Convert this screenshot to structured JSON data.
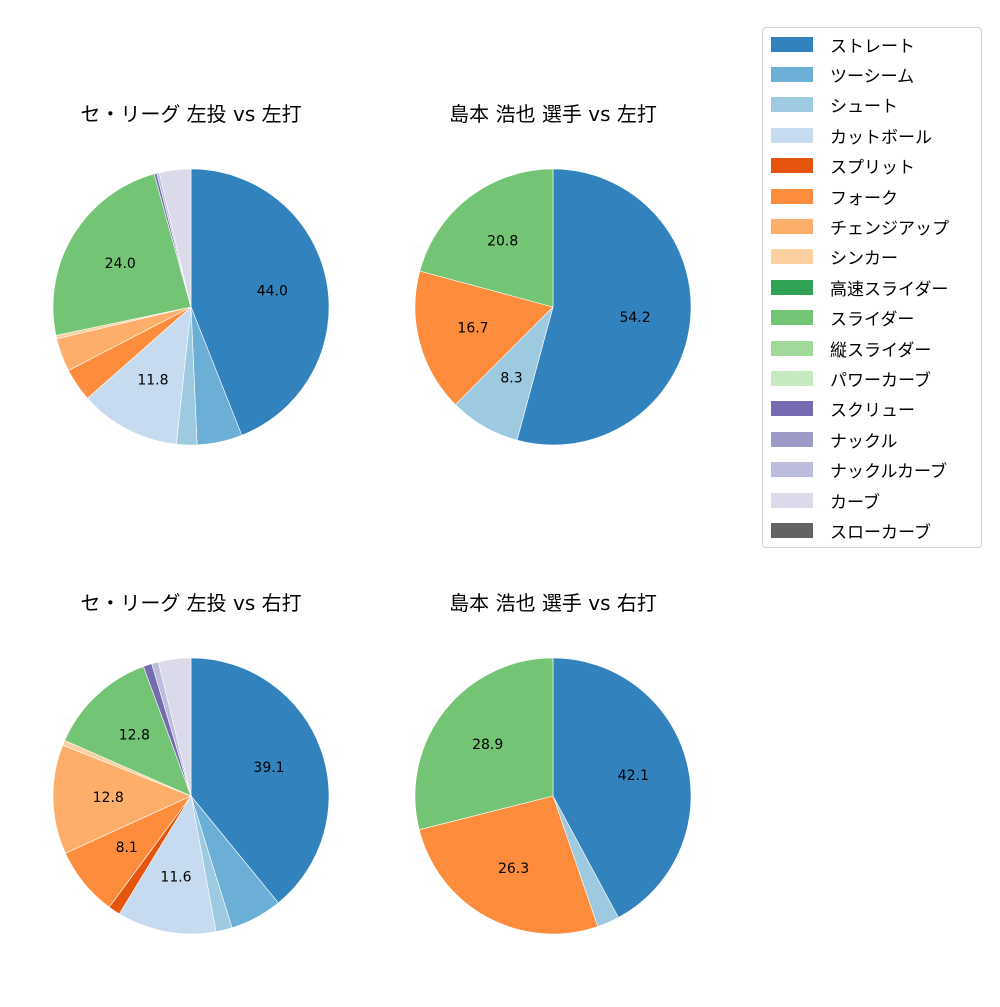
{
  "legend": {
    "items": [
      {
        "label": "ストレート",
        "color": "#3182bd"
      },
      {
        "label": "ツーシーム",
        "color": "#6baed6"
      },
      {
        "label": "シュート",
        "color": "#9ecae1"
      },
      {
        "label": "カットボール",
        "color": "#c6dbef"
      },
      {
        "label": "スプリット",
        "color": "#e6550d"
      },
      {
        "label": "フォーク",
        "color": "#fd8d3c"
      },
      {
        "label": "チェンジアップ",
        "color": "#fdae6b"
      },
      {
        "label": "シンカー",
        "color": "#fdd0a2"
      },
      {
        "label": "高速スライダー",
        "color": "#31a354"
      },
      {
        "label": "スライダー",
        "color": "#74c476"
      },
      {
        "label": "縦スライダー",
        "color": "#a1d99b"
      },
      {
        "label": "パワーカーブ",
        "color": "#c7e9c0"
      },
      {
        "label": "スクリュー",
        "color": "#756bb1"
      },
      {
        "label": "ナックル",
        "color": "#9e9ac8"
      },
      {
        "label": "ナックルカーブ",
        "color": "#bcbddc"
      },
      {
        "label": "カーブ",
        "color": "#dadaeb"
      },
      {
        "label": "スローカーブ",
        "color": "#636363"
      }
    ]
  },
  "chart_data": [
    {
      "type": "pie",
      "title": "セ・リーグ 左投 vs 左打",
      "categories": [
        "ストレート",
        "ツーシーム",
        "シュート",
        "カットボール",
        "フォーク",
        "チェンジアップ",
        "シンカー",
        "スライダー",
        "スクリュー",
        "ナックルカーブ",
        "カーブ"
      ],
      "values": [
        44.0,
        5.3,
        2.4,
        11.8,
        3.9,
        3.9,
        0.4,
        24.0,
        0.3,
        0.3,
        3.7
      ],
      "labels_shown": [
        "44.0",
        "",
        "",
        "11.8",
        "",
        "",
        "",
        "24.0",
        "",
        "",
        ""
      ],
      "start_angle": 90,
      "direction": "clockwise"
    },
    {
      "type": "pie",
      "title": "島本 浩也 選手 vs 左打",
      "categories": [
        "ストレート",
        "シュート",
        "フォーク",
        "スライダー"
      ],
      "values": [
        54.2,
        8.3,
        16.7,
        20.8
      ],
      "labels_shown": [
        "54.2",
        "8.3",
        "16.7",
        "20.8"
      ],
      "start_angle": 90,
      "direction": "clockwise"
    },
    {
      "type": "pie",
      "title": "セ・リーグ 左投 vs 右打",
      "categories": [
        "ストレート",
        "ツーシーム",
        "シュート",
        "カットボール",
        "スプリット",
        "フォーク",
        "チェンジアップ",
        "シンカー",
        "スライダー",
        "スクリュー",
        "ナックルカーブ",
        "カーブ"
      ],
      "values": [
        39.1,
        6.1,
        1.9,
        11.6,
        1.4,
        8.1,
        12.8,
        0.6,
        12.8,
        1.0,
        0.8,
        3.8
      ],
      "labels_shown": [
        "39.1",
        "",
        "",
        "11.6",
        "",
        "8.1",
        "12.8",
        "",
        "12.8",
        "",
        "",
        ""
      ],
      "start_angle": 90,
      "direction": "clockwise"
    },
    {
      "type": "pie",
      "title": "島本 浩也 選手 vs 右打",
      "categories": [
        "ストレート",
        "シュート",
        "フォーク",
        "スライダー"
      ],
      "values": [
        42.1,
        2.6,
        26.3,
        28.9
      ],
      "labels_shown": [
        "42.1",
        "",
        "26.3",
        "28.9"
      ],
      "start_angle": 90,
      "direction": "clockwise"
    }
  ],
  "panels": [
    {
      "title": "セ・リーグ 左投 vs 左打"
    },
    {
      "title": "島本 浩也 選手 vs 左打"
    },
    {
      "title": "セ・リーグ 左投 vs 右打"
    },
    {
      "title": "島本 浩也 選手 vs 右打"
    }
  ]
}
